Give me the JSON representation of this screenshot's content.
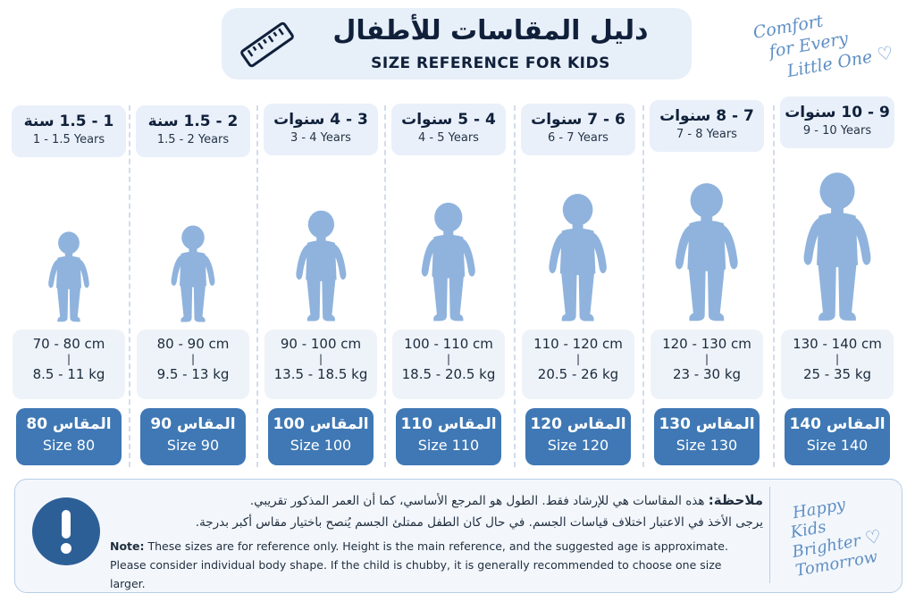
{
  "header": {
    "title_ar": "دليل المقاسات للأطفال",
    "title_en": "SIZE REFERENCE FOR KIDS",
    "icon": "ruler-icon"
  },
  "tagline_top": {
    "line1": "Comfort",
    "line2": "for Every",
    "line3": "Little One"
  },
  "tagline_bottom": {
    "line1": "Happy",
    "line2": "Kids",
    "line3": "Brighter",
    "line4": "Tomorrow"
  },
  "colors": {
    "accent": "#3f78b4",
    "light": "#e9f0fa",
    "figure": "#8fb3dd",
    "script": "#5f8fc4"
  },
  "sizes": [
    {
      "age_ar": "1 - 1.5 سنة",
      "age_en": "1 - 1.5 Years",
      "height": "70 - 80 cm",
      "sep": "|",
      "weight": "8.5 - 11 kg",
      "size_ar": "المقاس 80",
      "size_en": "Size 80"
    },
    {
      "age_ar": "2 - 1.5 سنة",
      "age_en": "1.5 - 2 Years",
      "height": "80 - 90 cm",
      "sep": "|",
      "weight": "9.5 - 13 kg",
      "size_ar": "المقاس 90",
      "size_en": "Size 90"
    },
    {
      "age_ar": "3 - 4 سنوات",
      "age_en": "3 - 4 Years",
      "height": "90 - 100 cm",
      "sep": "|",
      "weight": "13.5 - 18.5 kg",
      "size_ar": "المقاس 100",
      "size_en": "Size 100"
    },
    {
      "age_ar": "4 - 5 سنوات",
      "age_en": "4 - 5 Years",
      "height": "100 - 110 cm",
      "sep": "|",
      "weight": "18.5 - 20.5 kg",
      "size_ar": "المقاس 110",
      "size_en": "Size 110"
    },
    {
      "age_ar": "6 - 7 سنوات",
      "age_en": "6 - 7 Years",
      "height": "110 - 120 cm",
      "sep": "|",
      "weight": "20.5 - 26 kg",
      "size_ar": "المقاس 120",
      "size_en": "Size 120"
    },
    {
      "age_ar": "7 - 8 سنوات",
      "age_en": "7 - 8 Years",
      "height": "120 - 130 cm",
      "sep": "|",
      "weight": "23 - 30 kg",
      "size_ar": "المقاس 130",
      "size_en": "Size 130"
    },
    {
      "age_ar": "9 - 10 سنوات",
      "age_en": "9 - 10 Years",
      "height": "130 - 140 cm",
      "sep": "|",
      "weight": "25 - 35 kg",
      "size_ar": "المقاس 140",
      "size_en": "Size 140"
    }
  ],
  "note": {
    "label_ar": "ملاحظة:",
    "line1_ar": "هذه المقاسات هي للإرشاد فقط. الطول هو المرجع الأساسي، كما أن العمر المذكور تقريبي.",
    "line2_ar": "يرجى الأخذ في الاعتبار اختلاف قياسات الجسم. في حال كان الطفل ممتلئ الجسم يُنصح باختيار مقاس أكبر بدرجة.",
    "label_en": "Note:",
    "line1_en": "These sizes are for reference only. Height is the main reference, and the suggested age is approximate.",
    "line2_en": "Please consider individual body shape. If the child is chubby, it is generally recommended to choose one size larger.",
    "icon": "exclamation-icon"
  }
}
